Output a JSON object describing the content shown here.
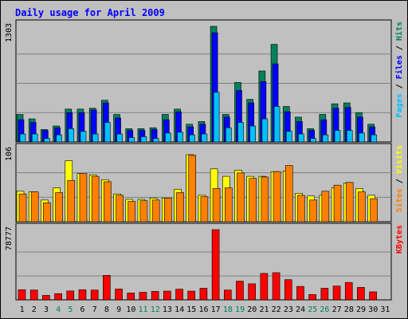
{
  "title": "Daily usage for April 2009",
  "colors": {
    "hits": "#00805c",
    "files": "#0000ff",
    "pages": "#00c0ff",
    "visits": "#ffff00",
    "sites": "#ff8000",
    "kbytes": "#ff0000",
    "title": "#0000ff",
    "weekend_label": "#00805c",
    "weekday_label": "#000000"
  },
  "chart_data": [
    {
      "type": "bar",
      "title": "Daily usage for April 2009",
      "ylabel_parts": [
        "Pages",
        "Files",
        "Hits"
      ],
      "ymax_label": "1303",
      "ylim": [
        0,
        1303
      ],
      "categories": [
        "1",
        "2",
        "3",
        "4",
        "5",
        "6",
        "7",
        "8",
        "9",
        "10",
        "11",
        "12",
        "13",
        "14",
        "15",
        "16",
        "17",
        "18",
        "19",
        "20",
        "21",
        "22",
        "23",
        "24",
        "25",
        "26",
        "27",
        "28",
        "29",
        "30",
        "31"
      ],
      "weekend": [
        "4",
        "5",
        "11",
        "12",
        "18",
        "19",
        "25",
        "26"
      ],
      "series": [
        {
          "name": "Hits",
          "values": [
            310,
            260,
            140,
            180,
            370,
            370,
            380,
            470,
            310,
            150,
            150,
            160,
            310,
            370,
            200,
            230,
            1303,
            310,
            670,
            480,
            800,
            1100,
            400,
            280,
            150,
            310,
            430,
            440,
            330,
            200,
            0
          ]
        },
        {
          "name": "Files",
          "values": [
            250,
            220,
            130,
            160,
            330,
            330,
            360,
            440,
            270,
            130,
            130,
            140,
            250,
            340,
            170,
            200,
            1230,
            280,
            580,
            440,
            680,
            880,
            340,
            230,
            130,
            250,
            380,
            390,
            280,
            170,
            0
          ]
        },
        {
          "name": "Pages",
          "values": [
            90,
            90,
            40,
            80,
            150,
            120,
            90,
            220,
            90,
            50,
            60,
            40,
            100,
            110,
            80,
            90,
            560,
            160,
            220,
            180,
            260,
            400,
            120,
            90,
            40,
            80,
            130,
            130,
            100,
            80,
            0
          ]
        }
      ]
    },
    {
      "type": "bar",
      "ylabel_parts": [
        "Sites",
        "Visits"
      ],
      "ymax_label": "106",
      "ylim": [
        0,
        106
      ],
      "categories": [
        "1",
        "2",
        "3",
        "4",
        "5",
        "6",
        "7",
        "8",
        "9",
        "10",
        "11",
        "12",
        "13",
        "14",
        "15",
        "16",
        "17",
        "18",
        "19",
        "20",
        "21",
        "22",
        "23",
        "24",
        "25",
        "26",
        "27",
        "28",
        "29",
        "30",
        "31"
      ],
      "series": [
        {
          "name": "Visits",
          "values": [
            45,
            44,
            32,
            50,
            90,
            71,
            69,
            62,
            41,
            33,
            33,
            35,
            35,
            48,
            99,
            39,
            78,
            67,
            76,
            67,
            67,
            74,
            75,
            42,
            38,
            39,
            50,
            57,
            49,
            39,
            0
          ]
        },
        {
          "name": "Sites",
          "values": [
            41,
            44,
            28,
            43,
            61,
            71,
            67,
            59,
            39,
            30,
            31,
            32,
            35,
            43,
            98,
            37,
            49,
            50,
            72,
            64,
            66,
            74,
            83,
            39,
            32,
            45,
            54,
            58,
            44,
            34,
            0
          ]
        }
      ]
    },
    {
      "type": "bar",
      "ylabel_parts": [
        "KBytes"
      ],
      "ymax_label": "78777",
      "ylim": [
        0,
        78777
      ],
      "categories": [
        "1",
        "2",
        "3",
        "4",
        "5",
        "6",
        "7",
        "8",
        "9",
        "10",
        "11",
        "12",
        "13",
        "14",
        "15",
        "16",
        "17",
        "18",
        "19",
        "20",
        "21",
        "22",
        "23",
        "24",
        "25",
        "26",
        "27",
        "28",
        "29",
        "30",
        "31"
      ],
      "series": [
        {
          "name": "KBytes",
          "values": [
            11400,
            11000,
            5000,
            7000,
            10000,
            11400,
            11000,
            27500,
            12200,
            7700,
            8500,
            9500,
            9800,
            12000,
            9800,
            13000,
            78777,
            11000,
            21000,
            18000,
            29700,
            30500,
            22700,
            15100,
            6000,
            13000,
            15500,
            19600,
            14000,
            9000,
            0
          ]
        }
      ]
    }
  ]
}
